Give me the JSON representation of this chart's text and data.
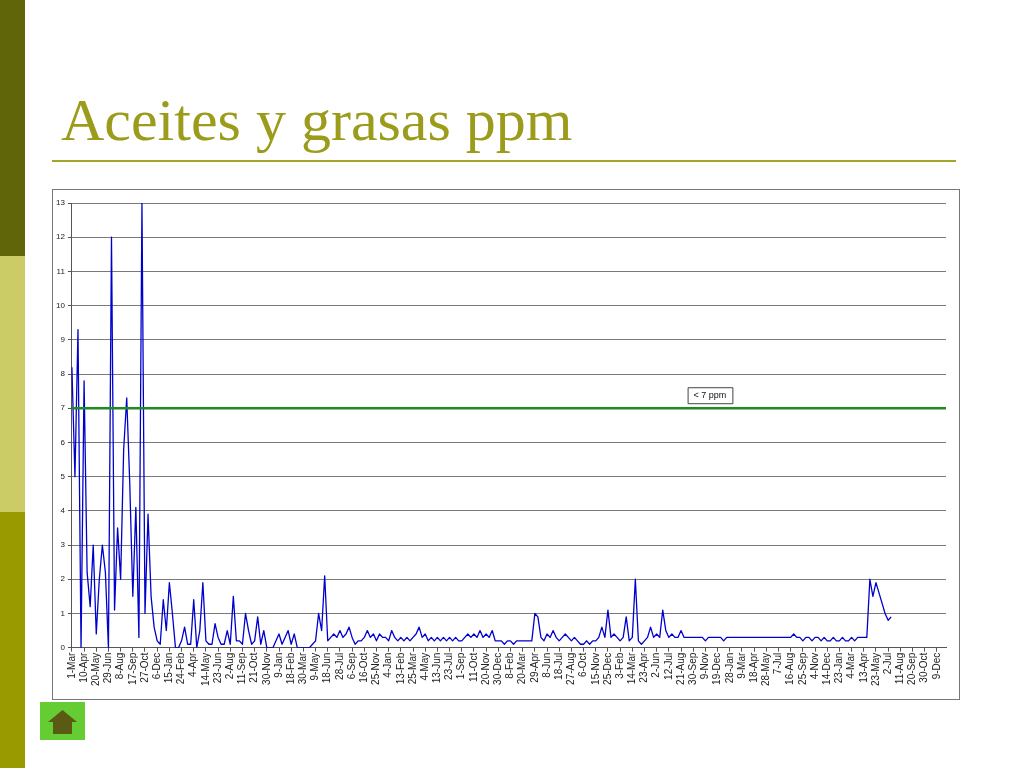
{
  "chart_data": {
    "type": "line",
    "title": "Aceites y grasas ppm",
    "categories": [
      "1-Mar",
      null,
      null,
      null,
      "10-Apr",
      null,
      null,
      null,
      "20-May",
      null,
      null,
      null,
      "29-Jun",
      null,
      null,
      null,
      "8-Aug",
      null,
      null,
      null,
      "17-Sep",
      null,
      null,
      null,
      "27-Oct",
      null,
      null,
      null,
      "6-Dec",
      null,
      null,
      null,
      "15-Jan",
      null,
      null,
      null,
      "24-Feb",
      null,
      null,
      null,
      "4-Apr",
      null,
      null,
      null,
      "14-May",
      null,
      null,
      null,
      "23-Jun",
      null,
      null,
      null,
      "2-Aug",
      null,
      null,
      null,
      "11-Sep",
      null,
      null,
      null,
      "21-Oct",
      null,
      null,
      null,
      "30-Nov",
      null,
      null,
      null,
      "9-Jan",
      null,
      null,
      null,
      "18-Feb",
      null,
      null,
      null,
      "30-Mar",
      null,
      null,
      null,
      "9-May",
      null,
      null,
      null,
      "18-Jun",
      null,
      null,
      null,
      "28-Jul",
      null,
      null,
      null,
      "6-Sep",
      null,
      null,
      null,
      "16-Oct",
      null,
      null,
      null,
      "25-Nov",
      null,
      null,
      null,
      "4-Jan",
      null,
      null,
      null,
      "13-Feb",
      null,
      null,
      null,
      "25-Mar",
      null,
      null,
      null,
      "4-May",
      null,
      null,
      null,
      "13-Jun",
      null,
      null,
      null,
      "23-Jul",
      null,
      null,
      null,
      "1-Sep",
      null,
      null,
      null,
      "11-Oct",
      null,
      null,
      null,
      "20-Nov",
      null,
      null,
      null,
      "30-Dec",
      null,
      null,
      null,
      "8-Feb",
      null,
      null,
      null,
      "20-Mar",
      null,
      null,
      null,
      "29-Apr",
      null,
      null,
      null,
      "8-Jun",
      null,
      null,
      null,
      "18-Jul",
      null,
      null,
      null,
      "27-Aug",
      null,
      null,
      null,
      "6-Oct",
      null,
      null,
      null,
      "15-Nov",
      null,
      null,
      null,
      "25-Dec",
      null,
      null,
      null,
      "3-Feb",
      null,
      null,
      null,
      "14-Mar",
      null,
      null,
      null,
      "23-Apr",
      null,
      null,
      null,
      "2-Jun",
      null,
      null,
      null,
      "12-Jul",
      null,
      null,
      null,
      "21-Aug",
      null,
      null,
      null,
      "30-Sep",
      null,
      null,
      null,
      "9-Nov",
      null,
      null,
      null,
      "19-Dec",
      null,
      null,
      null,
      "28-Jan",
      null,
      null,
      null,
      "9-Mar",
      null,
      null,
      null,
      "18-Apr",
      null,
      null,
      null,
      "28-May",
      null,
      null,
      null,
      "7-Jul",
      null,
      null,
      null,
      "16-Aug",
      null,
      null,
      null,
      "25-Sep",
      null,
      null,
      null,
      "4-Nov",
      null,
      null,
      null,
      "14-Dec",
      null,
      null,
      null,
      "23-Jan",
      null,
      null,
      null,
      "4-Mar",
      null,
      null,
      null,
      "13-Apr",
      null,
      null,
      null,
      "23-May",
      null,
      null,
      null,
      "2-Jul",
      null,
      null,
      null,
      "11-Aug",
      null,
      null,
      null,
      "20-Sep",
      null,
      null,
      null,
      "30-Oct",
      null,
      null,
      null,
      "9-Dec",
      null,
      null,
      null
    ],
    "series": [
      {
        "color": "#0000cc",
        "values": [
          8.2,
          5.0,
          9.3,
          0,
          7.8,
          2.2,
          1.2,
          3.0,
          0.4,
          2.0,
          3.0,
          2.2,
          0,
          12.0,
          1.1,
          3.5,
          2.0,
          5.8,
          7.3,
          4.8,
          1.5,
          4.1,
          0.3,
          13.0,
          1.0,
          3.9,
          1.5,
          0.6,
          0.2,
          0.1,
          1.4,
          0.5,
          1.9,
          1.0,
          0,
          0,
          0.2,
          0.6,
          0.1,
          0.1,
          1.4,
          0,
          0.5,
          1.9,
          0.2,
          0.1,
          0.1,
          0.7,
          0.3,
          0.1,
          0.1,
          0.5,
          0.1,
          1.5,
          0.2,
          0.2,
          0.1,
          1.0,
          0.5,
          0.1,
          0.2,
          0.9,
          0.1,
          0.5,
          0,
          0,
          0,
          0.2,
          0.4,
          0.1,
          0.3,
          0.5,
          0.1,
          0.4,
          0,
          0,
          0,
          0,
          0,
          0.1,
          0.2,
          1.0,
          0.5,
          2.1,
          0.2,
          0.3,
          0.4,
          0.3,
          0.5,
          0.3,
          0.4,
          0.6,
          0.3,
          0.1,
          0.2,
          0.2,
          0.3,
          0.5,
          0.3,
          0.4,
          0.2,
          0.4,
          0.3,
          0.3,
          0.2,
          0.5,
          0.3,
          0.2,
          0.3,
          0.2,
          0.3,
          0.2,
          0.3,
          0.4,
          0.6,
          0.3,
          0.4,
          0.2,
          0.3,
          0.2,
          0.3,
          0.2,
          0.3,
          0.2,
          0.3,
          0.2,
          0.3,
          0.2,
          0.2,
          0.3,
          0.4,
          0.3,
          0.4,
          0.3,
          0.5,
          0.3,
          0.4,
          0.3,
          0.5,
          0.2,
          0.2,
          0.2,
          0.1,
          0.2,
          0.2,
          0.1,
          0.2,
          0.2,
          0.2,
          0.2,
          0.2,
          0.2,
          1.0,
          0.9,
          0.3,
          0.2,
          0.4,
          0.3,
          0.5,
          0.3,
          0.2,
          0.3,
          0.4,
          0.3,
          0.2,
          0.3,
          0.2,
          0.1,
          0.1,
          0.2,
          0.1,
          0.2,
          0.2,
          0.3,
          0.6,
          0.3,
          1.1,
          0.3,
          0.4,
          0.3,
          0.2,
          0.3,
          0.9,
          0.2,
          0.3,
          2.0,
          0.2,
          0.1,
          0.2,
          0.3,
          0.6,
          0.3,
          0.4,
          0.3,
          1.1,
          0.5,
          0.3,
          0.4,
          0.3,
          0.3,
          0.5,
          0.3,
          0.3,
          0.3,
          0.3,
          0.3,
          0.3,
          0.3,
          0.2,
          0.3,
          0.3,
          0.3,
          0.3,
          0.3,
          0.2,
          0.3,
          0.3,
          0.3,
          0.3,
          0.3,
          0.3,
          0.3,
          0.3,
          0.3,
          0.3,
          0.3,
          0.3,
          0.3,
          0.3,
          0.3,
          0.3,
          0.3,
          0.3,
          0.3,
          0.3,
          0.3,
          0.3,
          0.4,
          0.3,
          0.3,
          0.2,
          0.3,
          0.3,
          0.2,
          0.3,
          0.3,
          0.2,
          0.3,
          0.2,
          0.2,
          0.3,
          0.2,
          0.2,
          0.3,
          0.2,
          0.2,
          0.3,
          0.2,
          0.3,
          0.3,
          0.3,
          0.3,
          2.0,
          1.5,
          1.9,
          1.6,
          1.3,
          1.0,
          0.8,
          0.9,
          null,
          null,
          null,
          null,
          null,
          null,
          null,
          null,
          null,
          null,
          null,
          null,
          null,
          null,
          null,
          null,
          null,
          null
        ]
      }
    ],
    "ylim": [
      0,
      13
    ],
    "yticks": [
      0,
      1,
      2,
      3,
      4,
      5,
      6,
      7,
      8,
      9,
      10,
      11,
      12,
      13
    ],
    "grid": "y",
    "marker": "none",
    "ref_lines": [
      {
        "axis": "y",
        "value": 7,
        "label": "< 7 ppm",
        "color": "#1e8c1e"
      }
    ]
  }
}
